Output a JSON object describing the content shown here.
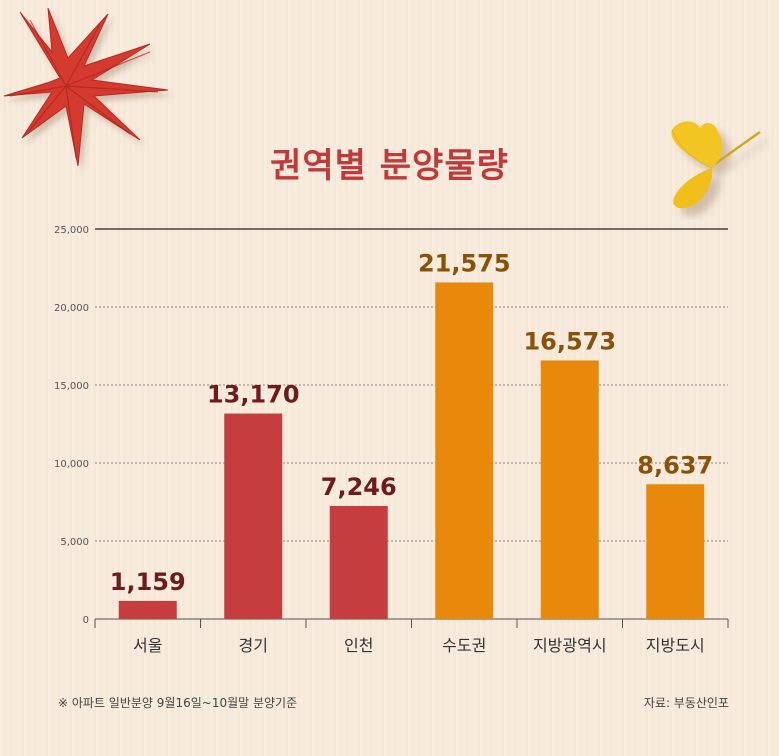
{
  "title": "권역별 분양물량",
  "footnote": "※ 아파트 일반분양 9월16일~10월말 분양기준",
  "source": "자료: 부동산인포",
  "colors": {
    "bar_red": "#c53d3f",
    "bar_orange": "#e8890c",
    "label_red": "#6e1b1e",
    "label_orange": "#8a5208",
    "title": "#c0393b"
  },
  "icons": [
    "maple-leaf-icon",
    "ginkgo-leaf-icon"
  ],
  "chart_data": {
    "type": "bar",
    "title": "권역별 분양물량",
    "xlabel": "",
    "ylabel": "",
    "ylim": [
      0,
      25000
    ],
    "yticks": [
      0,
      5000,
      10000,
      15000,
      20000,
      25000
    ],
    "ytick_labels": [
      "0",
      "5,000",
      "10,000",
      "15,000",
      "20,000",
      "25,000"
    ],
    "grid": true,
    "categories": [
      "서울",
      "경기",
      "인천",
      "수도권",
      "지방광역시",
      "지방도시"
    ],
    "values": [
      1159,
      13170,
      7246,
      21575,
      16573,
      8637
    ],
    "value_labels": [
      "1,159",
      "13,170",
      "7,246",
      "21,575",
      "16,573",
      "8,637"
    ],
    "bar_colors": [
      "#c53d3f",
      "#c53d3f",
      "#c53d3f",
      "#e8890c",
      "#e8890c",
      "#e8890c"
    ],
    "label_colors": [
      "#6e1b1e",
      "#6e1b1e",
      "#6e1b1e",
      "#8a5208",
      "#8a5208",
      "#8a5208"
    ]
  }
}
